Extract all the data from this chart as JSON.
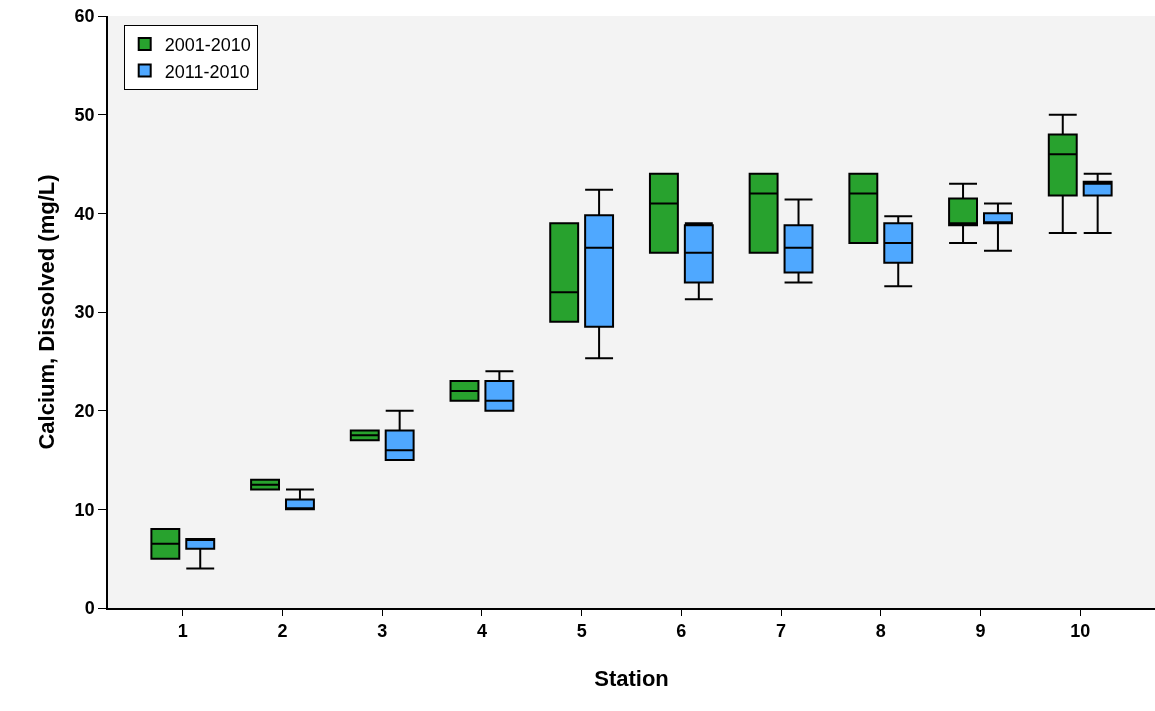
{
  "chart_data": {
    "type": "box",
    "xlabel": "Station",
    "ylabel": "Calcium, Dissolved (mg/L)",
    "categories": [
      "1",
      "2",
      "3",
      "4",
      "5",
      "6",
      "7",
      "8",
      "9",
      "10"
    ],
    "ylim": [
      0,
      60
    ],
    "yticks": [
      0,
      10,
      20,
      30,
      40,
      50,
      60
    ],
    "grid": false,
    "legend": "top left",
    "series": [
      {
        "name": "2001-2010",
        "color": "#28a22e",
        "boxes": [
          {
            "low": 5,
            "q1": 5,
            "median": 6.5,
            "q3": 8,
            "high": 8
          },
          {
            "low": 12,
            "q1": 12,
            "median": 12.5,
            "q3": 13,
            "high": 13
          },
          {
            "low": 17,
            "q1": 17,
            "median": 17.5,
            "q3": 18,
            "high": 18
          },
          {
            "low": 21,
            "q1": 21,
            "median": 22,
            "q3": 23,
            "high": 23
          },
          {
            "low": 29,
            "q1": 29,
            "median": 32,
            "q3": 39,
            "high": 39
          },
          {
            "low": 36,
            "q1": 36,
            "median": 41,
            "q3": 44,
            "high": 44
          },
          {
            "low": 36,
            "q1": 36,
            "median": 42,
            "q3": 44,
            "high": 44
          },
          {
            "low": 37,
            "q1": 37,
            "median": 42,
            "q3": 44,
            "high": 44
          },
          {
            "low": 37,
            "q1": 38.8,
            "median": 39,
            "q3": 41.5,
            "high": 43
          },
          {
            "low": 38,
            "q1": 41.8,
            "median": 46,
            "q3": 48,
            "high": 50
          }
        ]
      },
      {
        "name": "2011-2010",
        "color": "#4fa8ff",
        "boxes": [
          {
            "low": 4,
            "q1": 6,
            "median": 7,
            "q3": 7,
            "high": 7
          },
          {
            "low": 10,
            "q1": 10,
            "median": 10,
            "q3": 11,
            "high": 12
          },
          {
            "low": 15,
            "q1": 15,
            "median": 16,
            "q3": 18,
            "high": 20
          },
          {
            "low": 20,
            "q1": 20,
            "median": 21,
            "q3": 23,
            "high": 24
          },
          {
            "low": 25.3,
            "q1": 28.5,
            "median": 36.5,
            "q3": 39.8,
            "high": 42.4
          },
          {
            "low": 31.3,
            "q1": 33,
            "median": 36,
            "q3": 38.8,
            "high": 39
          },
          {
            "low": 33,
            "q1": 34,
            "median": 36.5,
            "q3": 38.8,
            "high": 41.4
          },
          {
            "low": 32.6,
            "q1": 35,
            "median": 37,
            "q3": 39,
            "high": 39.7
          },
          {
            "low": 36.2,
            "q1": 39,
            "median": 39,
            "q3": 40,
            "high": 41
          },
          {
            "low": 38,
            "q1": 41.8,
            "median": 43,
            "q3": 43.2,
            "high": 44
          }
        ]
      }
    ]
  }
}
